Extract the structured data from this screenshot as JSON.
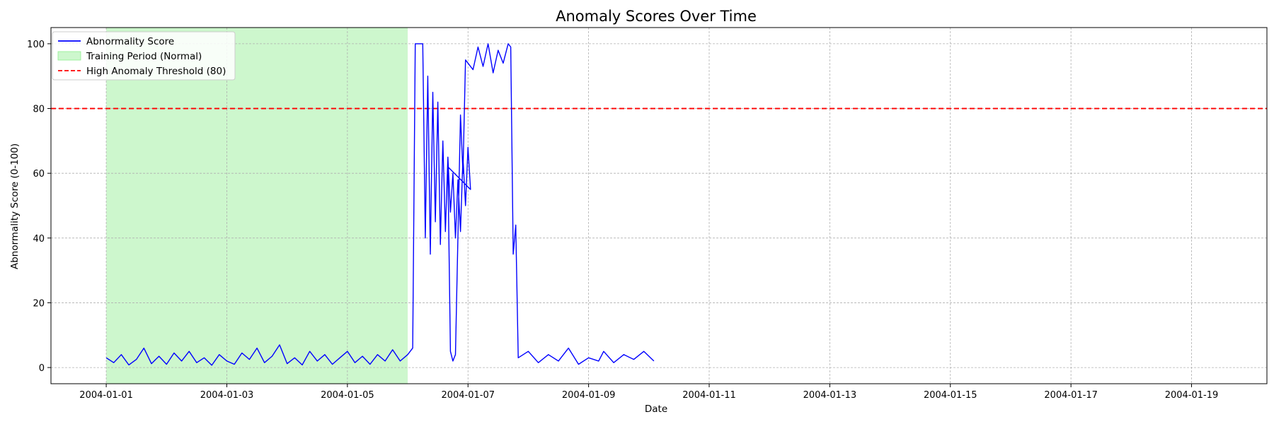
{
  "chart_data": {
    "type": "line",
    "title": "Anomaly Scores Over Time",
    "xlabel": "Date",
    "ylabel": "Abnormality Score (0-100)",
    "xlim": [
      "2003-12-31T02:00",
      "2004-01-20T06:00"
    ],
    "ylim": [
      -5,
      105
    ],
    "x_ticks": [
      "2004-01-01",
      "2004-01-03",
      "2004-01-05",
      "2004-01-07",
      "2004-01-09",
      "2004-01-11",
      "2004-01-13",
      "2004-01-15",
      "2004-01-17",
      "2004-01-19"
    ],
    "y_ticks": [
      0,
      20,
      40,
      60,
      80,
      100
    ],
    "grid": true,
    "legend_position": "top-left",
    "colors": {
      "score": "#0000ff",
      "training": "#90ee90",
      "threshold": "#ff0000"
    },
    "legend": [
      {
        "label": "Abnormality Score",
        "kind": "line",
        "color": "#0000ff"
      },
      {
        "label": "Training Period (Normal)",
        "kind": "patch",
        "color": "#90ee90"
      },
      {
        "label": "High Anomaly Threshold (80)",
        "kind": "dashed-line",
        "color": "#ff0000"
      }
    ],
    "training_period": {
      "start": "2004-01-01T00:00",
      "end": "2004-01-06T00:00"
    },
    "threshold": {
      "value": 80
    },
    "series": [
      {
        "name": "Abnormality Score",
        "color": "#0000ff",
        "points": [
          [
            "2004-01-01T00:00",
            3
          ],
          [
            "2004-01-01T03:00",
            1.5
          ],
          [
            "2004-01-01T06:00",
            4
          ],
          [
            "2004-01-01T09:00",
            0.8
          ],
          [
            "2004-01-01T12:00",
            2.5
          ],
          [
            "2004-01-01T15:00",
            6
          ],
          [
            "2004-01-01T18:00",
            1.2
          ],
          [
            "2004-01-01T21:00",
            3.5
          ],
          [
            "2004-01-02T00:00",
            1
          ],
          [
            "2004-01-02T03:00",
            4.5
          ],
          [
            "2004-01-02T06:00",
            2
          ],
          [
            "2004-01-02T09:00",
            5
          ],
          [
            "2004-01-02T12:00",
            1.5
          ],
          [
            "2004-01-02T15:00",
            3
          ],
          [
            "2004-01-02T18:00",
            0.7
          ],
          [
            "2004-01-02T21:00",
            4
          ],
          [
            "2004-01-03T00:00",
            2
          ],
          [
            "2004-01-03T03:00",
            1
          ],
          [
            "2004-01-03T06:00",
            4.5
          ],
          [
            "2004-01-03T09:00",
            2.5
          ],
          [
            "2004-01-03T12:00",
            6
          ],
          [
            "2004-01-03T15:00",
            1.5
          ],
          [
            "2004-01-03T18:00",
            3.5
          ],
          [
            "2004-01-03T21:00",
            7
          ],
          [
            "2004-01-04T00:00",
            1.2
          ],
          [
            "2004-01-04T03:00",
            3
          ],
          [
            "2004-01-04T06:00",
            0.8
          ],
          [
            "2004-01-04T09:00",
            5
          ],
          [
            "2004-01-04T12:00",
            2
          ],
          [
            "2004-01-04T15:00",
            4
          ],
          [
            "2004-01-04T18:00",
            1
          ],
          [
            "2004-01-04T21:00",
            3
          ],
          [
            "2004-01-05T00:00",
            5
          ],
          [
            "2004-01-05T03:00",
            1.5
          ],
          [
            "2004-01-05T06:00",
            3.5
          ],
          [
            "2004-01-05T09:00",
            1
          ],
          [
            "2004-01-05T12:00",
            4
          ],
          [
            "2004-01-05T15:00",
            2
          ],
          [
            "2004-01-05T18:00",
            5.5
          ],
          [
            "2004-01-05T21:00",
            2
          ],
          [
            "2004-01-06T00:00",
            4
          ],
          [
            "2004-01-06T02:00",
            6
          ],
          [
            "2004-01-06T03:00",
            100
          ],
          [
            "2004-01-06T06:00",
            100
          ],
          [
            "2004-01-06T07:00",
            40
          ],
          [
            "2004-01-06T08:00",
            90
          ],
          [
            "2004-01-06T09:00",
            35
          ],
          [
            "2004-01-06T10:00",
            85
          ],
          [
            "2004-01-06T11:00",
            45
          ],
          [
            "2004-01-06T12:00",
            82
          ],
          [
            "2004-01-06T13:00",
            38
          ],
          [
            "2004-01-06T14:00",
            70
          ],
          [
            "2004-01-06T15:00",
            42
          ],
          [
            "2004-01-06T16:00",
            65
          ],
          [
            "2004-01-06T17:00",
            48
          ],
          [
            "2004-01-06T18:00",
            60
          ],
          [
            "2004-01-06T19:00",
            40
          ],
          [
            "2004-01-06T20:00",
            58
          ],
          [
            "2004-01-06T21:00",
            42
          ],
          [
            "2004-01-06T22:00",
            65
          ],
          [
            "2004-01-06T23:00",
            50
          ],
          [
            "2004-01-07T00:00",
            68
          ],
          [
            "2004-01-07T01:00",
            55
          ],
          [
            "2004-01-06T16:00",
            62
          ],
          [
            "2004-01-06T17:00",
            5
          ],
          [
            "2004-01-06T18:00",
            2
          ],
          [
            "2004-01-06T19:00",
            4
          ],
          [
            "2004-01-06T21:00",
            78
          ],
          [
            "2004-01-06T22:00",
            60
          ],
          [
            "2004-01-06T23:00",
            95
          ],
          [
            "2004-01-07T02:00",
            92
          ],
          [
            "2004-01-07T04:00",
            99
          ],
          [
            "2004-01-07T06:00",
            93
          ],
          [
            "2004-01-07T08:00",
            100
          ],
          [
            "2004-01-07T10:00",
            91
          ],
          [
            "2004-01-07T12:00",
            98
          ],
          [
            "2004-01-07T14:00",
            94
          ],
          [
            "2004-01-07T16:00",
            100
          ],
          [
            "2004-01-07T17:00",
            99
          ],
          [
            "2004-01-07T18:00",
            35
          ],
          [
            "2004-01-07T19:00",
            44
          ],
          [
            "2004-01-07T20:00",
            3
          ],
          [
            "2004-01-08T00:00",
            5
          ],
          [
            "2004-01-08T04:00",
            1.5
          ],
          [
            "2004-01-08T08:00",
            4
          ],
          [
            "2004-01-08T12:00",
            2
          ],
          [
            "2004-01-08T16:00",
            6
          ],
          [
            "2004-01-08T20:00",
            1
          ],
          [
            "2004-01-09T00:00",
            3
          ],
          [
            "2004-01-09T04:00",
            2
          ],
          [
            "2004-01-09T06:00",
            5
          ],
          [
            "2004-01-09T10:00",
            1.5
          ],
          [
            "2004-01-09T14:00",
            4
          ],
          [
            "2004-01-09T18:00",
            2.5
          ],
          [
            "2004-01-09T22:00",
            5
          ],
          [
            "2004-01-10T02:00",
            2
          ]
        ]
      }
    ]
  }
}
